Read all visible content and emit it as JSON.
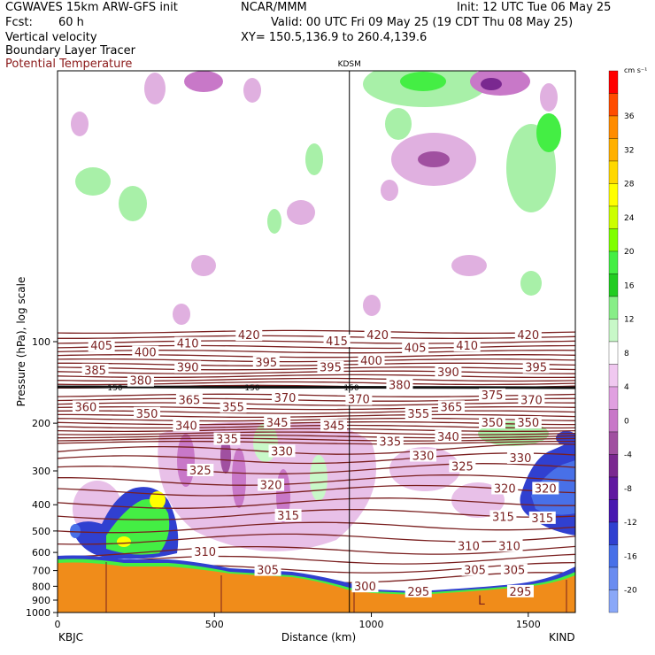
{
  "header": {
    "model": "CGWAVES 15km ARW-GFS init",
    "org": "NCAR/MMM",
    "init": "Init: 12 UTC Tue 06 May 25",
    "fcst_label": "Fcst:",
    "fcst_value": "60 h",
    "valid": "Valid: 00 UTC Fri 09 May 25 (19 CDT Thu 08 May 25)",
    "field1": "Vertical velocity",
    "xy": "XY= 150.5,136.9 to 260.4,139.6",
    "field2": "Boundary Layer Tracer",
    "field3": "Potential Temperature"
  },
  "colors": {
    "theta": "#7a1f1f",
    "terrain": "#f08c1a",
    "updraft_light": "#a8f0a8",
    "downdraft_light": "#e8b8e8"
  },
  "chart_data": {
    "type": "heatmap",
    "title": "",
    "xlabel": "Distance (km)",
    "ylabel": "Pressure (hPa), log scale",
    "xlim": [
      0,
      1650
    ],
    "ylim": [
      1000,
      10
    ],
    "x_ticks": [
      0,
      500,
      1000,
      1500
    ],
    "y_ticks": [
      100,
      200,
      300,
      400,
      500,
      600,
      700,
      800,
      900,
      1000
    ],
    "y_scale": "log",
    "marker_label": "KDSM",
    "marker_x": 930,
    "left_station": "KBJC",
    "right_station": "KIND",
    "tropopause_label": "150",
    "colorbar": {
      "unit": "cm s⁻¹",
      "labels": [
        "36",
        "32",
        "28",
        "24",
        "20",
        "16",
        "12",
        "8",
        "4",
        "0",
        "-4",
        "-8",
        "-12",
        "-16",
        "-20"
      ],
      "colors": [
        "#ff0000",
        "#ff4c00",
        "#ff8c00",
        "#ffb000",
        "#ffd800",
        "#ffff00",
        "#ccff00",
        "#7fff00",
        "#44ee44",
        "#22cc22",
        "#88ee88",
        "#c8f8c8",
        "#ffffff",
        "#f0c8f0",
        "#e0a0e0",
        "#c878c8",
        "#a050a0",
        "#7a2890",
        "#6018a0",
        "#4818b0",
        "#3040d0",
        "#4870e8",
        "#6a8cf0",
        "#8aa8f8"
      ]
    },
    "theta_labels": [
      {
        "v": "420",
        "x": 610,
        "p": 95
      },
      {
        "v": "420",
        "x": 1020,
        "p": 95
      },
      {
        "v": "420",
        "x": 1500,
        "p": 95
      },
      {
        "v": "415",
        "x": 890,
        "p": 100
      },
      {
        "v": "405",
        "x": 140,
        "p": 104
      },
      {
        "v": "410",
        "x": 415,
        "p": 102
      },
      {
        "v": "405",
        "x": 1140,
        "p": 106
      },
      {
        "v": "410",
        "x": 1305,
        "p": 104
      },
      {
        "v": "400",
        "x": 280,
        "p": 110
      },
      {
        "v": "400",
        "x": 1000,
        "p": 118
      },
      {
        "v": "390",
        "x": 415,
        "p": 125
      },
      {
        "v": "395",
        "x": 665,
        "p": 120
      },
      {
        "v": "395",
        "x": 870,
        "p": 125
      },
      {
        "v": "390",
        "x": 1245,
        "p": 130
      },
      {
        "v": "395",
        "x": 1525,
        "p": 125
      },
      {
        "v": "385",
        "x": 120,
        "p": 128
      },
      {
        "v": "380",
        "x": 265,
        "p": 140
      },
      {
        "v": "380",
        "x": 1090,
        "p": 145
      },
      {
        "v": "370",
        "x": 725,
        "p": 162
      },
      {
        "v": "370",
        "x": 960,
        "p": 164
      },
      {
        "v": "375",
        "x": 1385,
        "p": 158
      },
      {
        "v": "370",
        "x": 1510,
        "p": 165
      },
      {
        "v": "360",
        "x": 90,
        "p": 175
      },
      {
        "v": "365",
        "x": 420,
        "p": 165
      },
      {
        "v": "350",
        "x": 285,
        "p": 185
      },
      {
        "v": "355",
        "x": 560,
        "p": 175
      },
      {
        "v": "355",
        "x": 1150,
        "p": 185
      },
      {
        "v": "365",
        "x": 1255,
        "p": 175
      },
      {
        "v": "340",
        "x": 410,
        "p": 205
      },
      {
        "v": "345",
        "x": 700,
        "p": 200
      },
      {
        "v": "345",
        "x": 880,
        "p": 205
      },
      {
        "v": "350",
        "x": 1385,
        "p": 200
      },
      {
        "v": "350",
        "x": 1500,
        "p": 200
      },
      {
        "v": "335",
        "x": 540,
        "p": 230
      },
      {
        "v": "335",
        "x": 1060,
        "p": 235
      },
      {
        "v": "340",
        "x": 1245,
        "p": 225
      },
      {
        "v": "330",
        "x": 715,
        "p": 255
      },
      {
        "v": "330",
        "x": 1165,
        "p": 265
      },
      {
        "v": "330",
        "x": 1475,
        "p": 270
      },
      {
        "v": "325",
        "x": 455,
        "p": 300
      },
      {
        "v": "325",
        "x": 1290,
        "p": 290
      },
      {
        "v": "320",
        "x": 680,
        "p": 340
      },
      {
        "v": "320",
        "x": 1425,
        "p": 350
      },
      {
        "v": "320",
        "x": 1555,
        "p": 350
      },
      {
        "v": "315",
        "x": 735,
        "p": 440
      },
      {
        "v": "315",
        "x": 1420,
        "p": 445
      },
      {
        "v": "315",
        "x": 1545,
        "p": 450
      },
      {
        "v": "310",
        "x": 470,
        "p": 600
      },
      {
        "v": "310",
        "x": 1310,
        "p": 570
      },
      {
        "v": "310",
        "x": 1440,
        "p": 570
      },
      {
        "v": "305",
        "x": 670,
        "p": 700
      },
      {
        "v": "305",
        "x": 1330,
        "p": 700
      },
      {
        "v": "305",
        "x": 1455,
        "p": 700
      },
      {
        "v": "300",
        "x": 980,
        "p": 805
      },
      {
        "v": "295",
        "x": 1150,
        "p": 840
      },
      {
        "v": "295",
        "x": 1475,
        "p": 840
      }
    ]
  }
}
